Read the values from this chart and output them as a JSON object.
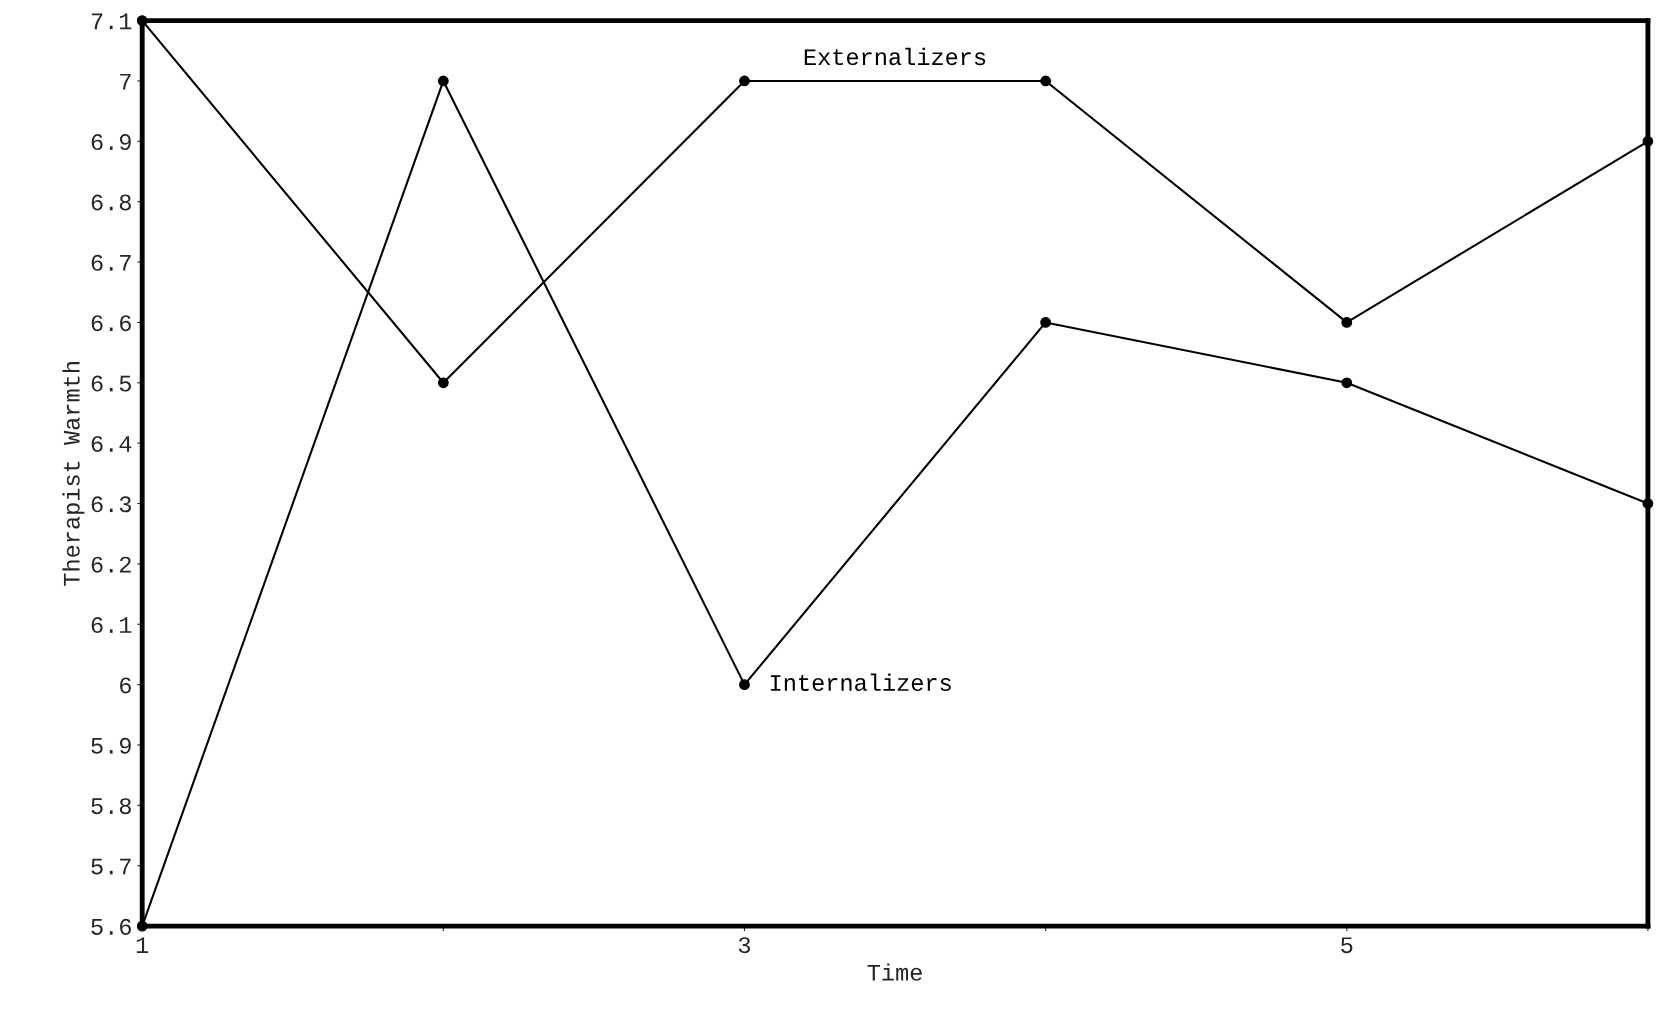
{
  "chart_data": {
    "type": "line",
    "xlabel": "Time",
    "ylabel": "Therapist Warmth",
    "x": [
      1,
      2,
      3,
      4,
      5,
      6
    ],
    "series": [
      {
        "name": "Externalizers",
        "color": "#000000",
        "values": [
          7.1,
          6.5,
          7.0,
          7.0,
          6.6,
          6.9
        ]
      },
      {
        "name": "Internalizers",
        "color": "#000000",
        "values": [
          5.6,
          7.0,
          6.0,
          6.6,
          6.5,
          6.3
        ]
      }
    ],
    "xlim": [
      1,
      6
    ],
    "ylim": [
      5.6,
      7.1
    ],
    "xticks": [
      1,
      {
        "value": 2,
        "label": null
      },
      3,
      {
        "value": 4,
        "label": null
      },
      5,
      {
        "value": 6,
        "label": null
      }
    ],
    "yticks": [
      5.6,
      5.7,
      5.8,
      5.9,
      6,
      6.1,
      6.2,
      6.3,
      6.4,
      6.5,
      6.6,
      6.7,
      6.8,
      6.9,
      7,
      7.1
    ],
    "marker": "circle",
    "line_style": "solid",
    "grid": false,
    "legend": false
  }
}
